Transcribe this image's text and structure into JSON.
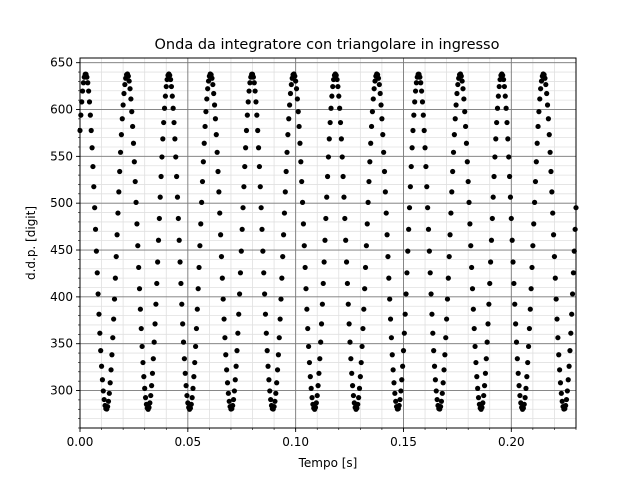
{
  "chart_data": {
    "type": "scatter",
    "title": "Onda da integratore con triangolare in ingresso",
    "xlabel": "Tempo [s]",
    "ylabel": "d.d.p. [digit]",
    "xlim": [
      0.0,
      0.23
    ],
    "ylim": [
      260,
      655
    ],
    "xticks": [
      0.0,
      0.05,
      0.1,
      0.15,
      0.2
    ],
    "xtick_labels": [
      "0.00",
      "0.05",
      "0.10",
      "0.15",
      "0.20"
    ],
    "yticks": [
      300,
      350,
      400,
      450,
      500,
      550,
      600,
      650
    ],
    "ytick_labels": [
      "300",
      "350",
      "400",
      "450",
      "500",
      "550",
      "600",
      "650"
    ],
    "grid": true,
    "minor_grid": true,
    "marker_color": "#000000",
    "series": [
      {
        "points": {
          "x_start": 0.0,
          "x_step": 0.0004,
          "count": 576,
          "model": "sinusoid",
          "offset": 459,
          "amplitude": 179,
          "period": 0.0193,
          "first_peak_x": 0.0026
        }
      }
    ]
  }
}
